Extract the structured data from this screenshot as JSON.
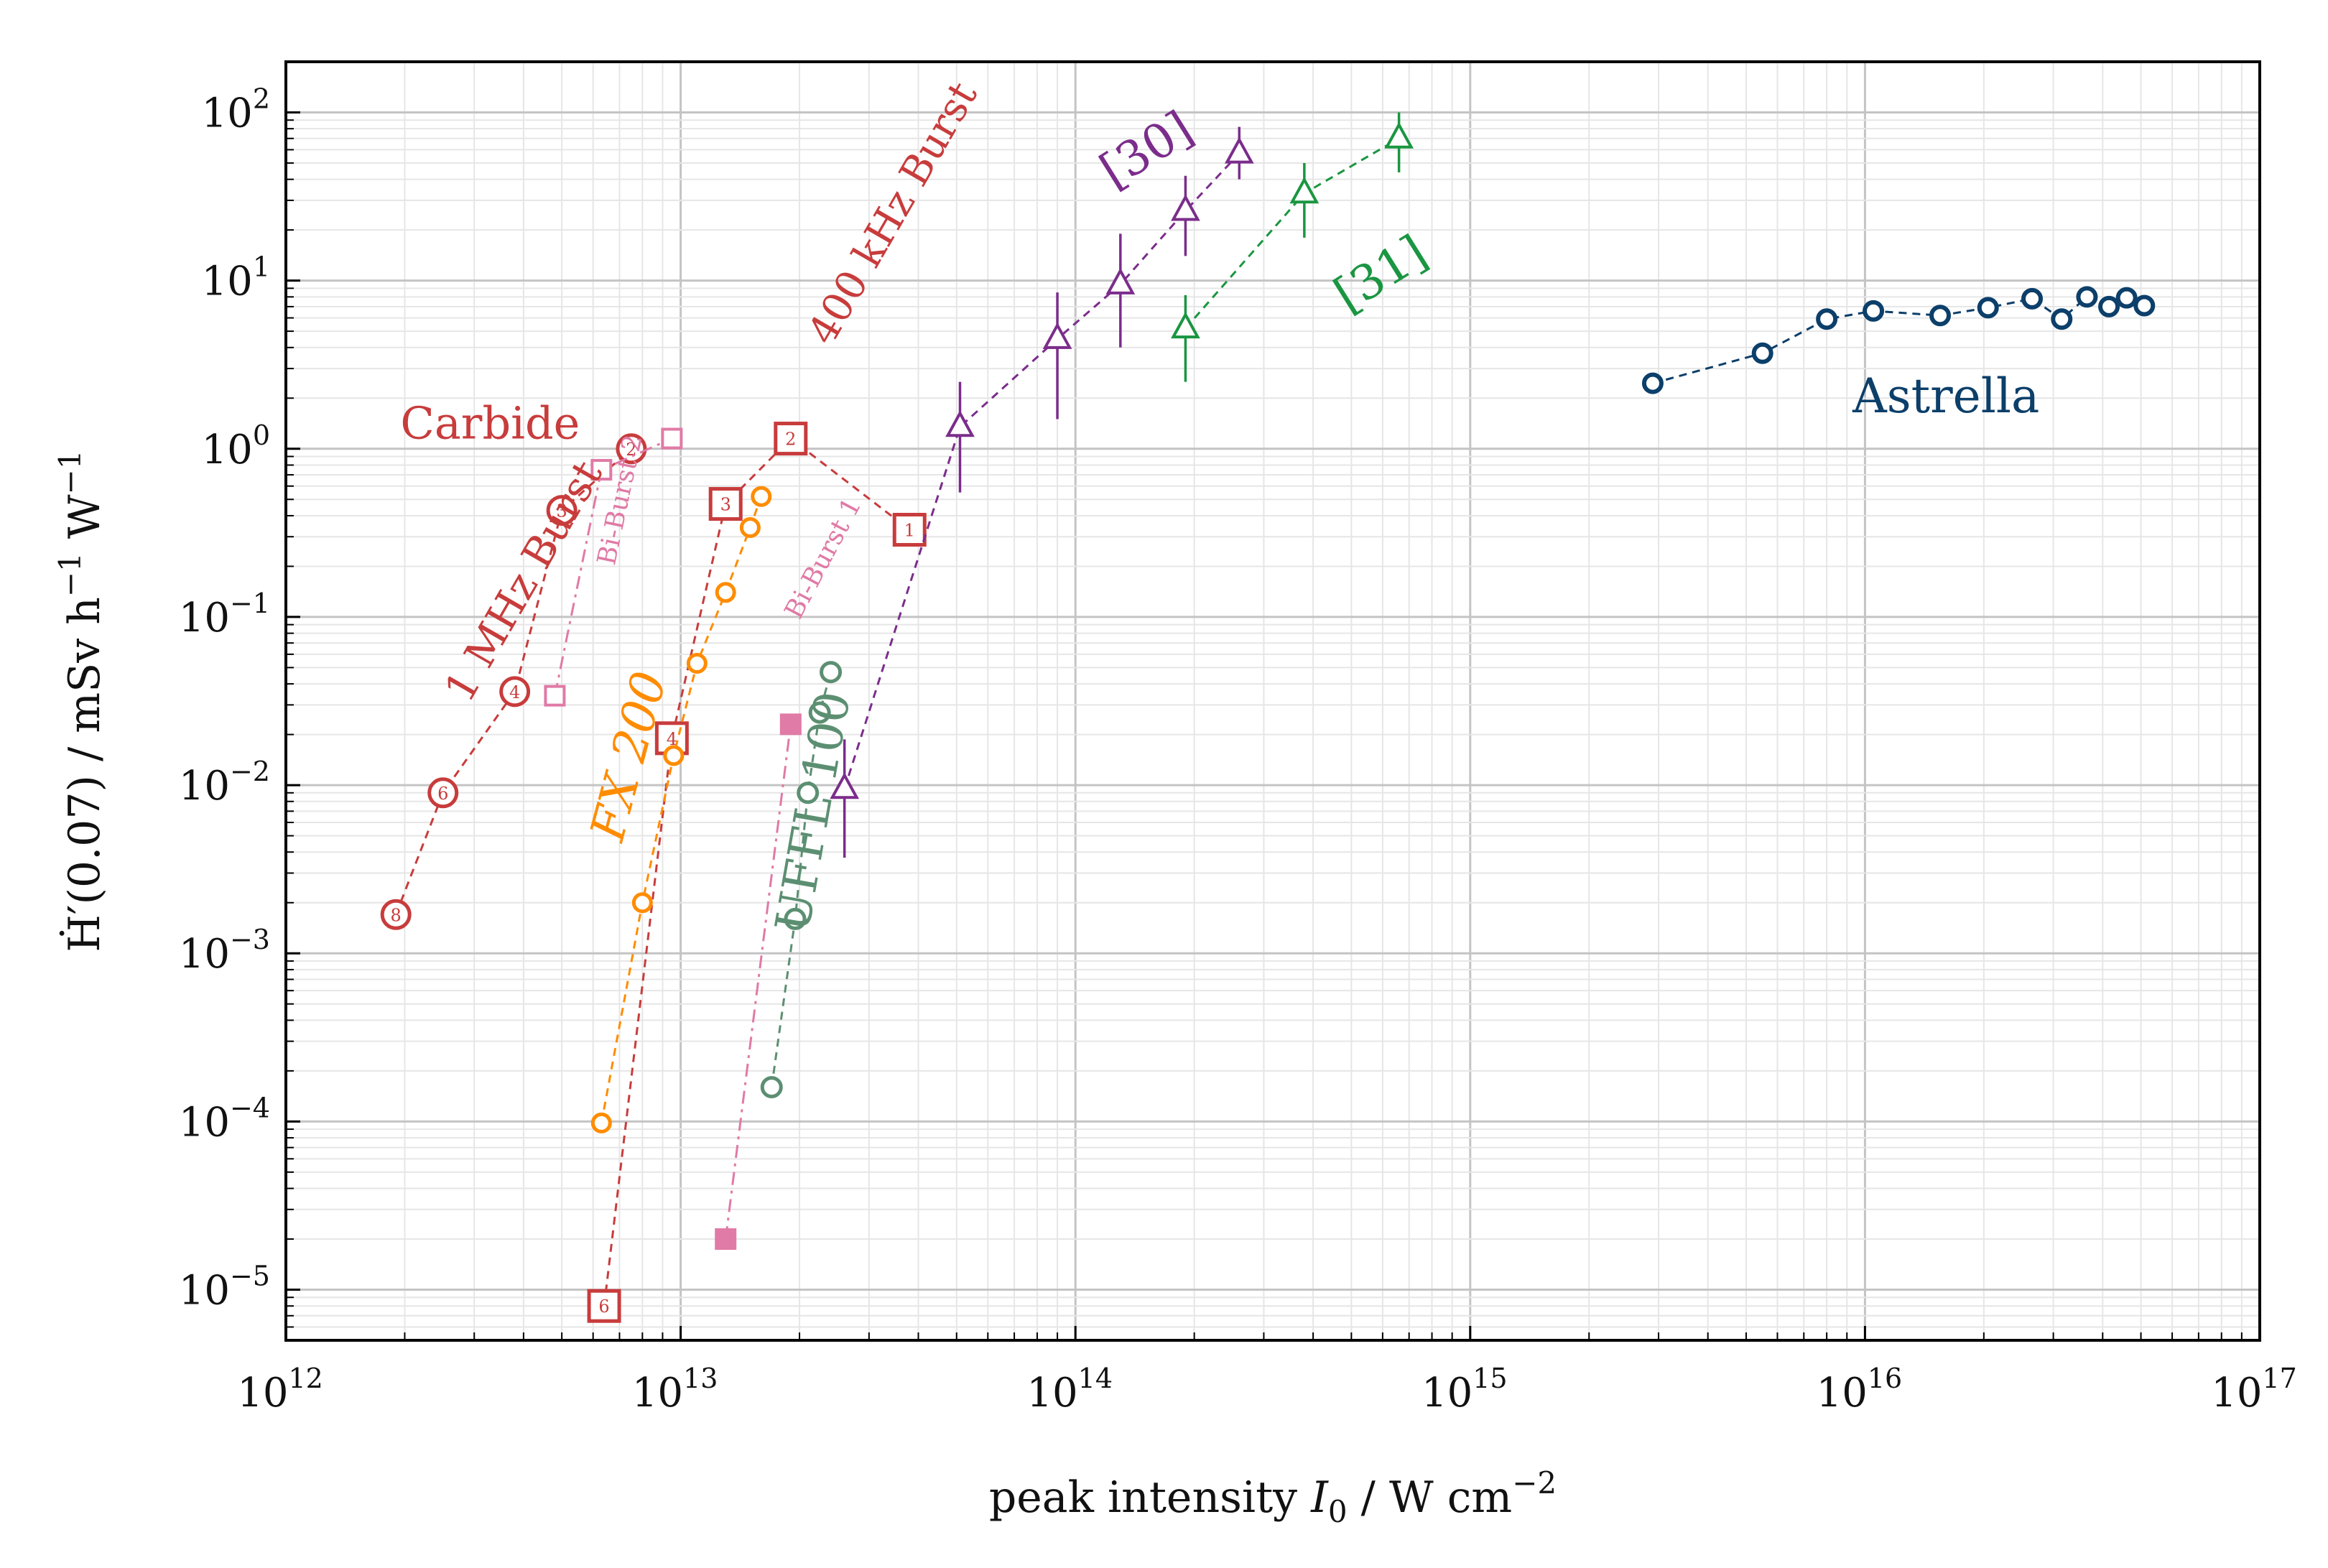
{
  "chart_data": {
    "type": "scatter",
    "xscale": "log",
    "yscale": "log",
    "xlim": [
      1000000000000.0,
      1e+17
    ],
    "ylim": [
      5e-06,
      200
    ],
    "xlabel_parts": [
      "peak intensity ",
      "I",
      "0",
      " /  W cm",
      "−2"
    ],
    "ylabel_parts": [
      "Ḣ′(0.07) / mSv h",
      "−1",
      " W",
      "−1"
    ],
    "grid": true,
    "x_ticks": [
      {
        "base": "10",
        "exp": "12",
        "v": 1000000000000.0
      },
      {
        "base": "10",
        "exp": "13",
        "v": 10000000000000.0
      },
      {
        "base": "10",
        "exp": "14",
        "v": 100000000000000.0
      },
      {
        "base": "10",
        "exp": "15",
        "v": 1000000000000000.0
      },
      {
        "base": "10",
        "exp": "16",
        "v": 1e+16
      },
      {
        "base": "10",
        "exp": "17",
        "v": 1e+17
      }
    ],
    "y_ticks": [
      {
        "base": "10",
        "exp": "−5",
        "v": 1e-05
      },
      {
        "base": "10",
        "exp": "−4",
        "v": 0.0001
      },
      {
        "base": "10",
        "exp": "−3",
        "v": 0.001
      },
      {
        "base": "10",
        "exp": "−2",
        "v": 0.01
      },
      {
        "base": "10",
        "exp": "−1",
        "v": 0.1
      },
      {
        "base": "10",
        "exp": "0",
        "v": 1
      },
      {
        "base": "10",
        "exp": "1",
        "v": 10
      },
      {
        "base": "10",
        "exp": "2",
        "v": 100
      }
    ],
    "series": [
      {
        "name": "1 MHz Burst",
        "color": "#c83c3c",
        "marker": "circle-num",
        "line": "dashed",
        "x": [
          1900000000000.0,
          2500000000000.0,
          3800000000000.0,
          5000000000000.0,
          7500000000000.0
        ],
        "y": [
          0.0017,
          0.009,
          0.036,
          0.43,
          1.0
        ],
        "marker_labels": [
          "8",
          "6",
          "4",
          "3",
          "2"
        ]
      },
      {
        "name": "400 kHz Burst",
        "color": "#c83c3c",
        "marker": "square-num",
        "line": "dashed",
        "x": [
          6400000000000.0,
          9500000000000.0,
          13000000000000.0,
          19000000000000.0,
          38000000000000.0
        ],
        "y": [
          8e-06,
          0.019,
          0.47,
          1.15,
          0.33
        ],
        "marker_labels": [
          "6",
          "4",
          "3",
          "2",
          "1"
        ]
      },
      {
        "name": "Bi-Burst 2",
        "color": "#e07aa6",
        "marker": "square-open",
        "line": "dashdot",
        "x": [
          4800000000000.0,
          6300000000000.0,
          9500000000000.0
        ],
        "y": [
          0.034,
          0.75,
          1.15
        ]
      },
      {
        "name": "FX 200",
        "color": "#ff8c00",
        "marker": "circle-small",
        "line": "dashed",
        "x": [
          6300000000000.0,
          8000000000000.0,
          9600000000000.0,
          11000000000000.0,
          13000000000000.0,
          15000000000000.0,
          16000000000000.0
        ],
        "y": [
          9.8e-05,
          0.002,
          0.015,
          0.053,
          0.14,
          0.34,
          0.52
        ]
      },
      {
        "name": "Bi-Burst 1",
        "color": "#e07aa6",
        "marker": "square-filled",
        "line": "dashdot",
        "x": [
          13000000000000.0,
          19000000000000.0
        ],
        "y": [
          2e-05,
          0.023
        ]
      },
      {
        "name": "UFFL 100",
        "color": "#5c8f72",
        "marker": "circle",
        "line": "dashed",
        "x": [
          17000000000000.0,
          19500000000000.0,
          21000000000000.0,
          22500000000000.0,
          24000000000000.0
        ],
        "y": [
          0.00016,
          0.0016,
          0.009,
          0.027,
          0.047
        ]
      },
      {
        "name": "[30]",
        "color": "#7b2d8b",
        "marker": "triangle",
        "line": "dashed",
        "x": [
          26000000000000.0,
          51000000000000.0,
          90000000000000.0,
          130000000000000.0,
          190000000000000.0,
          260000000000000.0
        ],
        "y": [
          0.0095,
          1.35,
          4.5,
          9.5,
          26,
          57
        ],
        "y_err": [
          [
            0.0037,
            0.0187
          ],
          [
            0.55,
            2.5
          ],
          [
            1.5,
            8.5
          ],
          [
            4.0,
            19.0
          ],
          [
            14,
            42
          ],
          [
            40,
            82
          ]
        ]
      },
      {
        "name": "[31]",
        "color": "#1a9641",
        "marker": "triangle",
        "line": "dashed",
        "x": [
          190000000000000.0,
          380000000000000.0,
          660000000000000.0
        ],
        "y": [
          5.2,
          33,
          70
        ],
        "y_err": [
          [
            2.5,
            8.2
          ],
          [
            18,
            50
          ],
          [
            44,
            100
          ]
        ]
      },
      {
        "name": "Astrella",
        "color": "#0c3f6a",
        "marker": "circle-bold",
        "line": "dashed",
        "x": [
          2900000000000000.0,
          5500000000000000.0,
          8000000000000000.0,
          1.05e+16,
          1.55e+16,
          2.05e+16,
          2.65e+16,
          3.15e+16,
          3.65e+16,
          4.15e+16,
          4.6e+16,
          5.1e+16
        ],
        "y": [
          2.45,
          3.7,
          5.9,
          6.6,
          6.2,
          6.9,
          7.8,
          5.9,
          8.0,
          7.0,
          7.9,
          7.1
        ]
      }
    ],
    "annotations": [
      {
        "id": "carbide",
        "text": "Carbide",
        "color": "#c83c3c",
        "x": 1950000000000.0,
        "y": 1.15,
        "rotate": 0,
        "size": 62,
        "italic": false
      },
      {
        "id": "mhz",
        "text": "1 MHz Burst",
        "color": "#c83c3c",
        "x": 2900000000000.0,
        "y": 0.03,
        "rotate": -60,
        "size": 58,
        "italic": false
      },
      {
        "id": "khz",
        "text": "400 kHz Burst",
        "color": "#c83c3c",
        "x": 24000000000000.0,
        "y": 4.0,
        "rotate": -60,
        "size": 56,
        "italic": false
      },
      {
        "id": "bib2",
        "text": "Bi-Burst 2",
        "color": "#e07aa6",
        "x": 6800000000000.0,
        "y": 0.2,
        "rotate": -78,
        "size": 36,
        "italic": false
      },
      {
        "id": "bib1",
        "text": "Bi-Burst 1",
        "color": "#e07aa6",
        "x": 20000000000000.0,
        "y": 0.095,
        "rotate": -62,
        "size": 36,
        "italic": false
      },
      {
        "id": "fx",
        "text": "FX 200",
        "color": "#ff8c00",
        "x": 7100000000000.0,
        "y": 0.0045,
        "rotate": -75,
        "size": 66,
        "italic": true
      },
      {
        "id": "uffl",
        "text": "UFFL 100",
        "color": "#5c8f72",
        "x": 21000000000000.0,
        "y": 0.0013,
        "rotate": -80,
        "size": 66,
        "italic": false
      },
      {
        "id": "r30",
        "text": "[30]",
        "color": "#7b2d8b",
        "x": 125000000000000.0,
        "y": 35,
        "rotate": -32,
        "size": 66,
        "italic": false
      },
      {
        "id": "r31",
        "text": "[31]",
        "color": "#1a9641",
        "x": 490000000000000.0,
        "y": 6.4,
        "rotate": -32,
        "size": 66,
        "italic": false
      },
      {
        "id": "astrella",
        "text": "Astrella",
        "color": "#0c3f6a",
        "x": 9300000000000000.0,
        "y": 1.65,
        "rotate": 0,
        "size": 66,
        "italic": false
      }
    ]
  }
}
